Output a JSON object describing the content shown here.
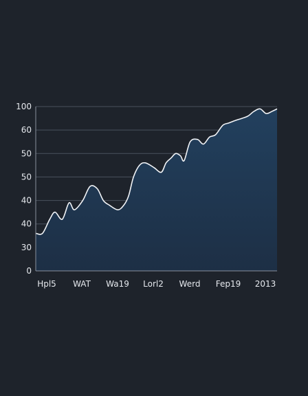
{
  "chart_data": {
    "type": "area",
    "title": "",
    "xlabel": "",
    "ylabel": "",
    "grid": true,
    "legend": "none",
    "y_tick_labels": [
      "0",
      "30",
      "40",
      "40",
      "50",
      "50",
      "60",
      "100"
    ],
    "x_tick_labels": [
      "Hpl5",
      "WAT",
      "Wa19",
      "Lorl2",
      "Werd",
      "Fep19",
      "2013"
    ],
    "series": [
      {
        "x": [
          0,
          2.8,
          5.8,
          8.0,
          11.0,
          13.8,
          16.0,
          19.5,
          22.5,
          25.5,
          28.0,
          30.5,
          34.0,
          36.5,
          38.5,
          40.5,
          43.0,
          45.5,
          49.0,
          52.0,
          54.0,
          56.0,
          58.0,
          60.0,
          61.5,
          64.0,
          67.0,
          69.5,
          72.0,
          74.5,
          77.5,
          80.0,
          82.5,
          85.5,
          88.0,
          90.5,
          93.0,
          95.5,
          98.0,
          100.0
        ],
        "y": [
          1.6,
          1.6,
          2.2,
          2.5,
          2.2,
          2.9,
          2.6,
          3.0,
          3.6,
          3.5,
          3.0,
          2.8,
          2.6,
          2.8,
          3.2,
          4.0,
          4.5,
          4.6,
          4.4,
          4.2,
          4.6,
          4.8,
          5.0,
          4.9,
          4.7,
          5.5,
          5.6,
          5.4,
          5.7,
          5.8,
          6.2,
          6.3,
          6.4,
          6.5,
          6.6,
          6.8,
          6.9,
          6.7,
          6.8,
          6.9
        ]
      }
    ],
    "colors": {
      "line": "#f2f4f7",
      "fill_top": "#22405e",
      "fill_bottom": "#1d2f45",
      "grid": "#4a525e",
      "text": "#e6e9ee",
      "background": "#1e232b"
    }
  }
}
